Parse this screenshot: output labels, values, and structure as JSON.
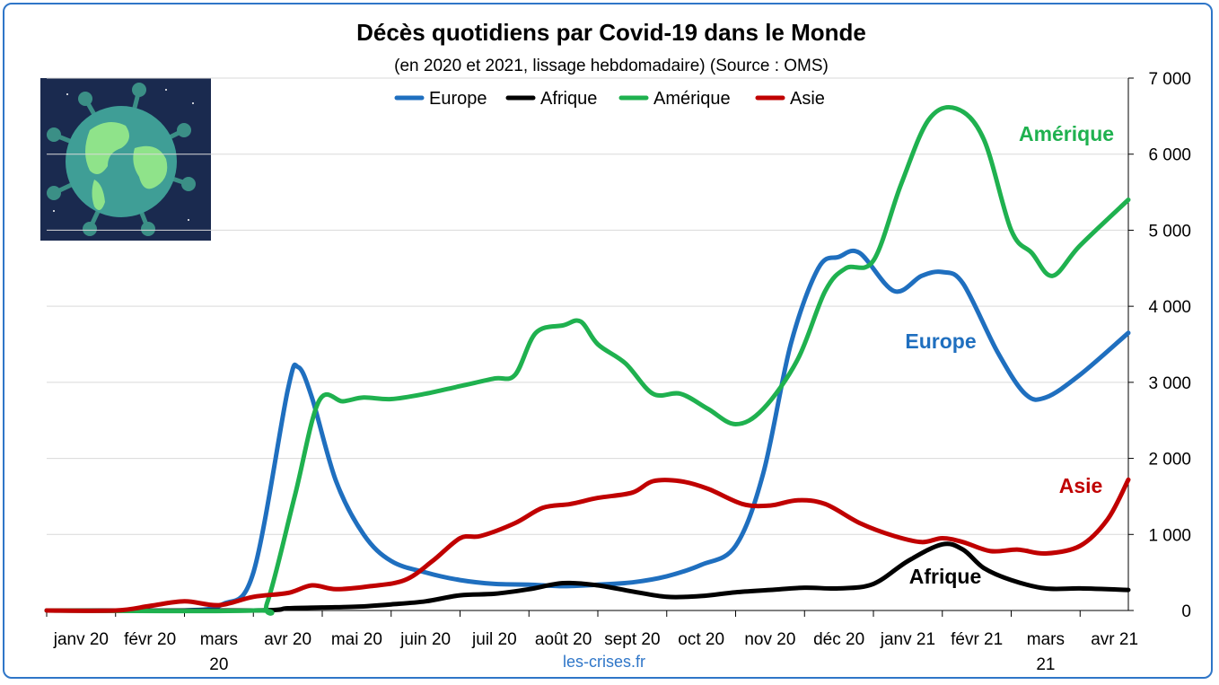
{
  "chart_data": {
    "type": "line",
    "title": "Décès quotidiens par Covid-19 dans le Monde",
    "subtitle": "(en 2020 et 2021, lissage hebdomadaire) (Source : OMS)",
    "source_label": "les-crises.fr",
    "xlabel": "",
    "ylabel": "",
    "x_ticks": [
      "janv 20",
      "févr 20",
      "mars 20",
      "avr 20",
      "mai 20",
      "juin 20",
      "juil 20",
      "août 20",
      "sept 20",
      "oct 20",
      "nov 20",
      "déc 20",
      "janv 21",
      "févr 21",
      "mars 21",
      "avr 21"
    ],
    "y_ticks": [
      "0",
      "1 000",
      "2 000",
      "3 000",
      "4 000",
      "5 000",
      "6 000",
      "7 000"
    ],
    "ylim": [
      0,
      7000
    ],
    "xlim": [
      0,
      15.7
    ],
    "grid": true,
    "legend_position": "top",
    "series": [
      {
        "name": "Europe",
        "color": "#1f6fbf",
        "annotation": "Europe",
        "points": [
          [
            0,
            0
          ],
          [
            1,
            0
          ],
          [
            2,
            0
          ],
          [
            2.55,
            80
          ],
          [
            3,
            500
          ],
          [
            3.5,
            2900
          ],
          [
            3.65,
            3200
          ],
          [
            3.85,
            2800
          ],
          [
            4.2,
            1700
          ],
          [
            4.6,
            1000
          ],
          [
            5,
            650
          ],
          [
            5.5,
            500
          ],
          [
            6,
            400
          ],
          [
            6.5,
            350
          ],
          [
            7,
            340
          ],
          [
            7.5,
            320
          ],
          [
            8,
            340
          ],
          [
            8.5,
            370
          ],
          [
            9,
            450
          ],
          [
            9.5,
            600
          ],
          [
            10,
            850
          ],
          [
            10.4,
            1800
          ],
          [
            10.8,
            3500
          ],
          [
            11.2,
            4500
          ],
          [
            11.5,
            4650
          ],
          [
            11.8,
            4700
          ],
          [
            12.3,
            4200
          ],
          [
            12.7,
            4400
          ],
          [
            13,
            4450
          ],
          [
            13.3,
            4300
          ],
          [
            13.8,
            3400
          ],
          [
            14.2,
            2850
          ],
          [
            14.5,
            2800
          ],
          [
            15,
            3100
          ],
          [
            15.7,
            3650
          ]
        ]
      },
      {
        "name": "Afrique",
        "color": "#000000",
        "annotation": "Afrique",
        "points": [
          [
            0,
            0
          ],
          [
            3,
            0
          ],
          [
            3.5,
            30
          ],
          [
            4,
            40
          ],
          [
            4.5,
            50
          ],
          [
            5,
            80
          ],
          [
            5.5,
            120
          ],
          [
            6,
            200
          ],
          [
            6.5,
            220
          ],
          [
            7,
            280
          ],
          [
            7.5,
            360
          ],
          [
            8,
            330
          ],
          [
            8.5,
            250
          ],
          [
            9,
            180
          ],
          [
            9.5,
            190
          ],
          [
            10,
            240
          ],
          [
            10.5,
            270
          ],
          [
            11,
            300
          ],
          [
            11.5,
            290
          ],
          [
            12,
            350
          ],
          [
            12.5,
            650
          ],
          [
            13,
            870
          ],
          [
            13.3,
            800
          ],
          [
            13.6,
            560
          ],
          [
            14,
            400
          ],
          [
            14.5,
            290
          ],
          [
            15,
            290
          ],
          [
            15.7,
            270
          ]
        ]
      },
      {
        "name": "Amérique",
        "color": "#1fb14f",
        "annotation": "Amérique",
        "points": [
          [
            0,
            0
          ],
          [
            3,
            0
          ],
          [
            3.2,
            100
          ],
          [
            3.6,
            1500
          ],
          [
            3.95,
            2750
          ],
          [
            4.3,
            2750
          ],
          [
            4.6,
            2800
          ],
          [
            5,
            2780
          ],
          [
            5.5,
            2850
          ],
          [
            6,
            2950
          ],
          [
            6.5,
            3050
          ],
          [
            6.8,
            3100
          ],
          [
            7.1,
            3650
          ],
          [
            7.5,
            3750
          ],
          [
            7.75,
            3800
          ],
          [
            8,
            3500
          ],
          [
            8.4,
            3250
          ],
          [
            8.8,
            2850
          ],
          [
            9.2,
            2850
          ],
          [
            9.6,
            2650
          ],
          [
            10,
            2450
          ],
          [
            10.4,
            2650
          ],
          [
            10.9,
            3300
          ],
          [
            11.3,
            4200
          ],
          [
            11.6,
            4500
          ],
          [
            12,
            4600
          ],
          [
            12.4,
            5600
          ],
          [
            12.8,
            6450
          ],
          [
            13.2,
            6600
          ],
          [
            13.6,
            6200
          ],
          [
            14,
            5000
          ],
          [
            14.3,
            4700
          ],
          [
            14.6,
            4400
          ],
          [
            15,
            4800
          ],
          [
            15.7,
            5400
          ]
        ]
      },
      {
        "name": "Asie",
        "color": "#c00000",
        "annotation": "Asie",
        "points": [
          [
            0,
            0
          ],
          [
            1,
            0
          ],
          [
            1.5,
            60
          ],
          [
            2,
            120
          ],
          [
            2.5,
            70
          ],
          [
            3,
            180
          ],
          [
            3.5,
            230
          ],
          [
            3.85,
            330
          ],
          [
            4.2,
            280
          ],
          [
            4.7,
            320
          ],
          [
            5.2,
            400
          ],
          [
            5.6,
            650
          ],
          [
            6,
            950
          ],
          [
            6.3,
            980
          ],
          [
            6.8,
            1150
          ],
          [
            7.2,
            1350
          ],
          [
            7.6,
            1400
          ],
          [
            8,
            1480
          ],
          [
            8.5,
            1550
          ],
          [
            8.8,
            1700
          ],
          [
            9.2,
            1700
          ],
          [
            9.6,
            1600
          ],
          [
            10.1,
            1400
          ],
          [
            10.5,
            1380
          ],
          [
            10.9,
            1450
          ],
          [
            11.3,
            1400
          ],
          [
            11.8,
            1150
          ],
          [
            12.3,
            980
          ],
          [
            12.7,
            900
          ],
          [
            13,
            950
          ],
          [
            13.3,
            900
          ],
          [
            13.7,
            780
          ],
          [
            14.1,
            800
          ],
          [
            14.5,
            750
          ],
          [
            15,
            850
          ],
          [
            15.4,
            1200
          ],
          [
            15.7,
            1720
          ]
        ]
      }
    ]
  }
}
